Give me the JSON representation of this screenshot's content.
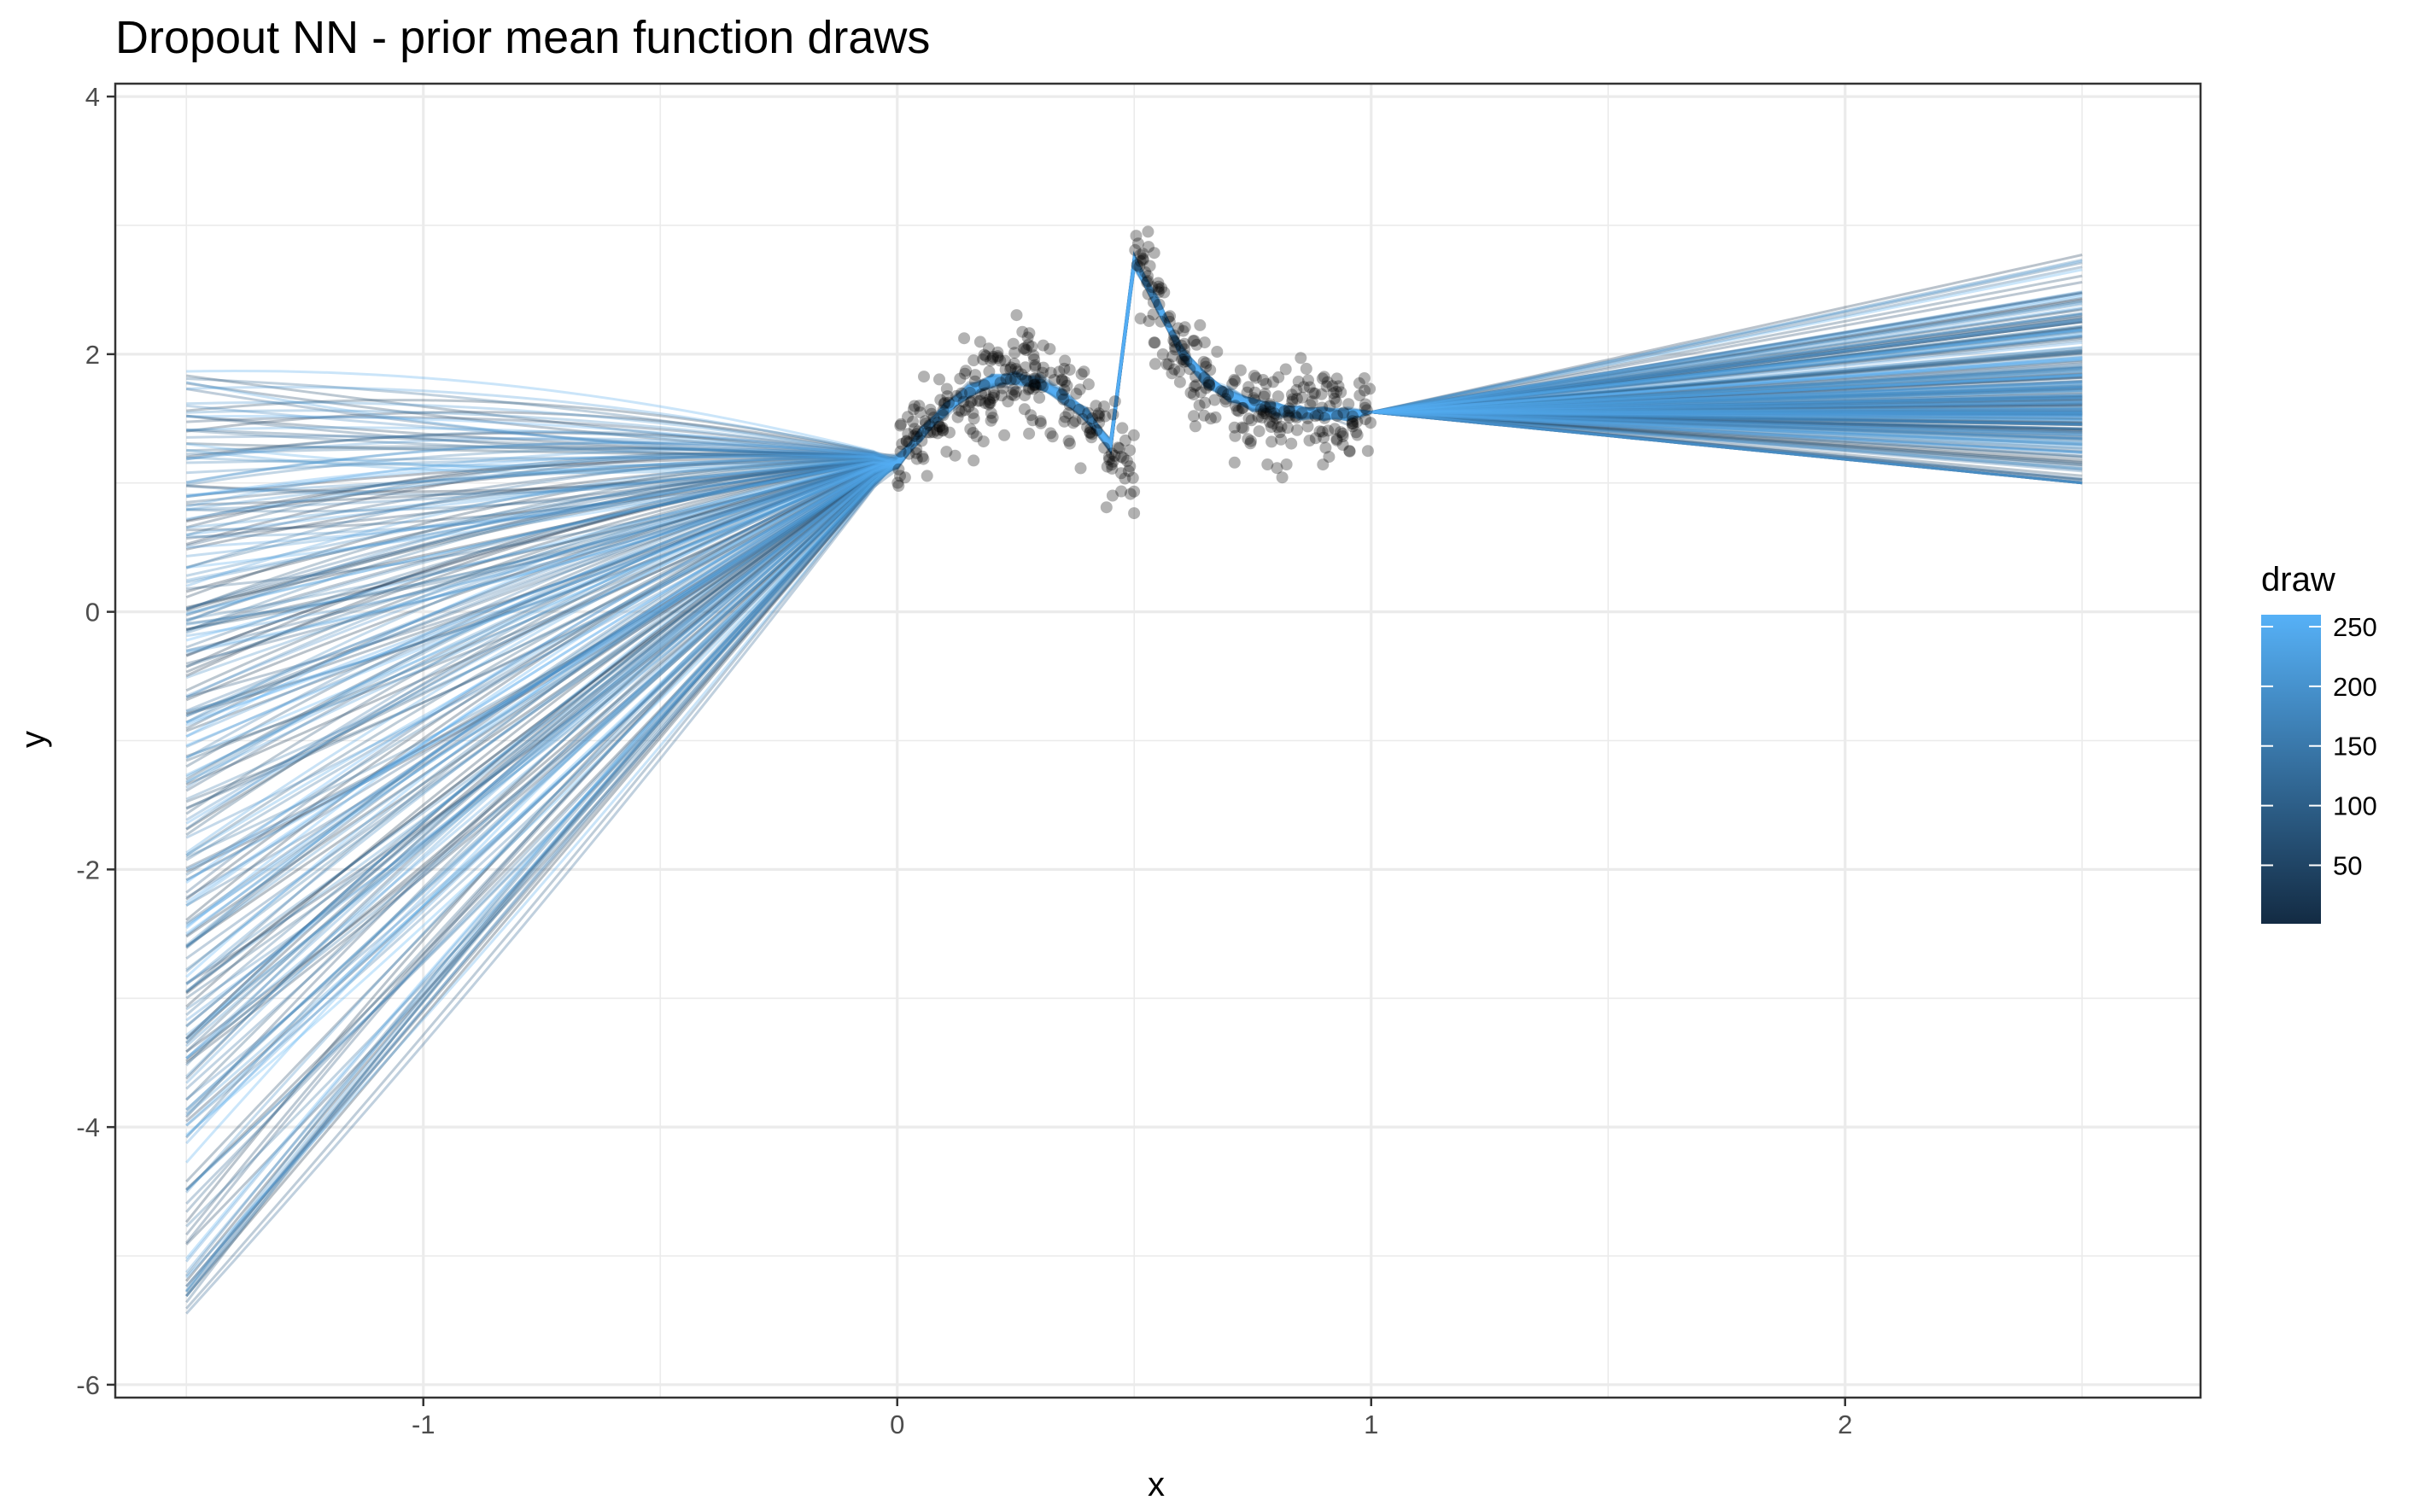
{
  "chart_data": {
    "type": "line",
    "title": "Dropout NN - prior mean function draws",
    "xlabel": "x",
    "ylabel": "y",
    "xlim": [
      -1.65,
      2.75
    ],
    "ylim": [
      -6.1,
      4.1
    ],
    "x_ticks": [
      -1,
      0,
      1,
      2
    ],
    "x_tick_labels": [
      "-1",
      "0",
      "1",
      "2"
    ],
    "y_ticks": [
      -6,
      -4,
      -2,
      0,
      2,
      4
    ],
    "y_tick_labels": [
      "-6",
      "-4",
      "-2",
      "0",
      "2",
      "4"
    ],
    "grid": true,
    "legend": {
      "title": "draw",
      "type": "colorbar",
      "placement": "right",
      "range": [
        1,
        260
      ],
      "ticks": [
        50,
        100,
        150,
        200,
        250
      ],
      "tick_labels": [
        "50",
        "100",
        "150",
        "200",
        "250"
      ],
      "color_low": "#132B43",
      "color_high": "#56B1F7"
    },
    "series_summary": {
      "draw_count": 260,
      "x_range": [
        -1.5,
        2.5
      ],
      "y_at_x_min_range": [
        -5.6,
        1.9
      ],
      "y_at_x_max_range": [
        1.0,
        3.6
      ],
      "training_region_x": [
        0,
        1
      ],
      "mean_curve": {
        "x": [
          -1.5,
          -1.0,
          -0.5,
          0.0,
          0.1,
          0.2,
          0.3,
          0.4,
          0.5,
          0.52,
          0.6,
          0.7,
          0.8,
          1.0,
          1.5,
          2.0,
          2.5
        ],
        "y": [
          -1.5,
          -0.8,
          0.3,
          1.2,
          1.6,
          1.75,
          1.7,
          1.4,
          1.1,
          2.7,
          2.3,
          1.85,
          1.6,
          1.55,
          1.6,
          1.8,
          2.2
        ]
      }
    },
    "observations": {
      "count": 500,
      "x_range": [
        0,
        1
      ],
      "y_range": [
        0.6,
        2.9
      ]
    },
    "colors": {
      "points": "#000000",
      "grid": "#ebebeb",
      "panel_border": "#333333"
    }
  }
}
